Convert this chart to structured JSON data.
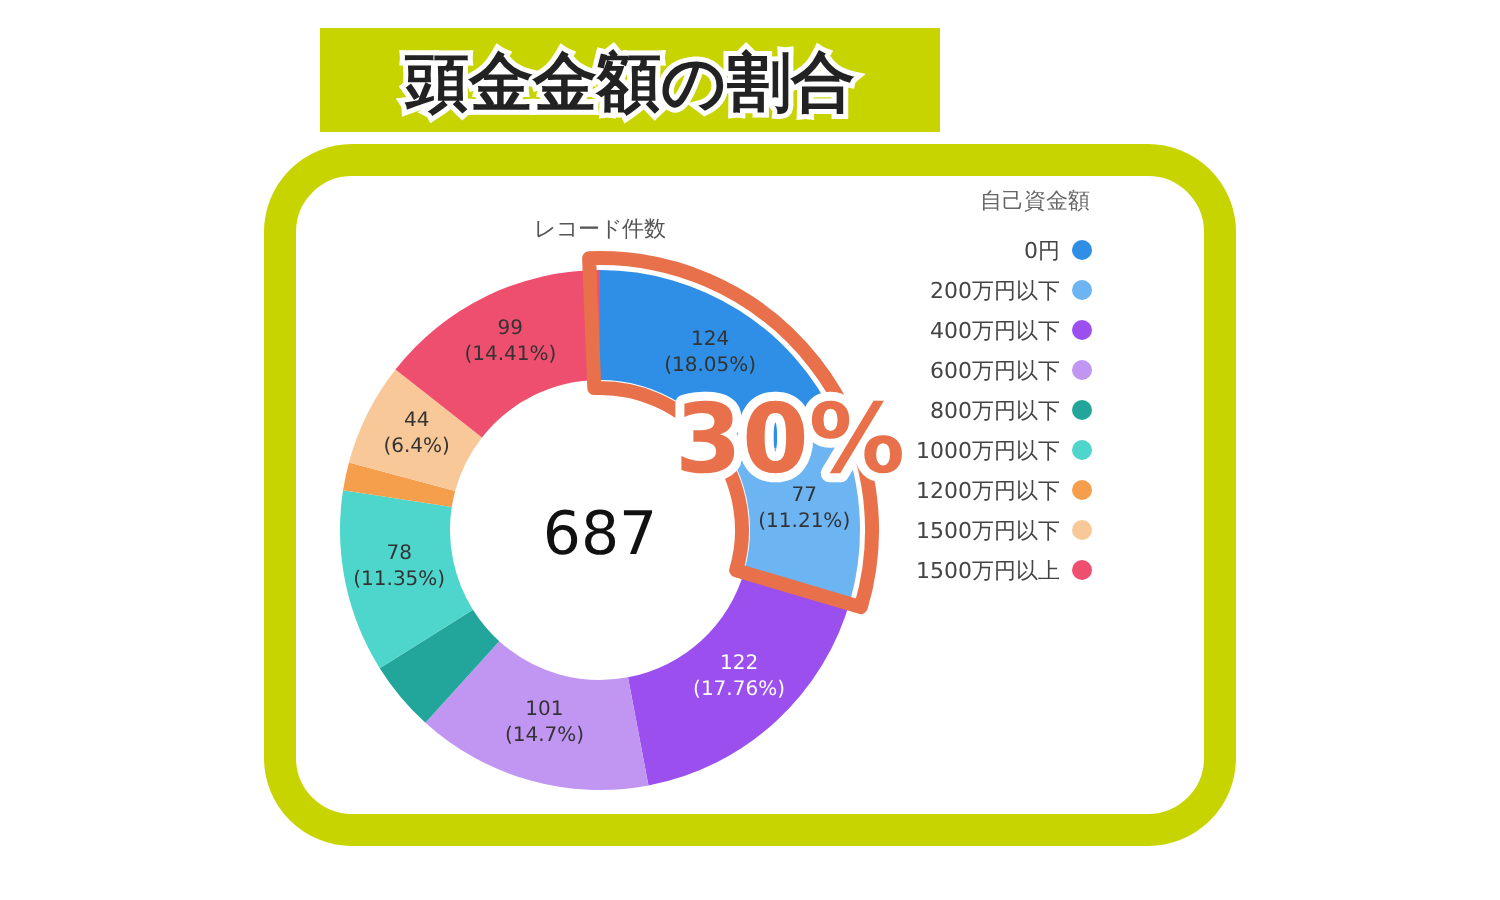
{
  "chart_data": {
    "type": "donut",
    "title": "頭金金額の割合",
    "subtitle": "レコード件数",
    "legend_title": "自己資金額",
    "legend": "right",
    "categories": [
      "0円",
      "200万円以下",
      "400万円以下",
      "600万円以下",
      "800万円以下",
      "1000万円以下",
      "1200万円以下",
      "1500万円以下",
      "1500万円以上"
    ],
    "values": [
      124,
      77,
      122,
      101,
      30,
      78,
      12,
      44,
      99
    ],
    "colors": [
      "#2f8fe6",
      "#6cb4f2",
      "#9b4fef",
      "#c195f2",
      "#22a69b",
      "#4fd6cc",
      "#f59f4c",
      "#f8c898",
      "#ef4f6e"
    ],
    "value_labels": [
      "124\n(18.05%)",
      "77\n(11.21%)",
      "122\n(17.76%)",
      "101\n(14.7%)",
      null,
      "78\n(11.35%)",
      null,
      "44\n(6.4%)",
      "99\n(14.41%)"
    ],
    "annotations": [
      "687",
      "30%"
    ]
  }
}
